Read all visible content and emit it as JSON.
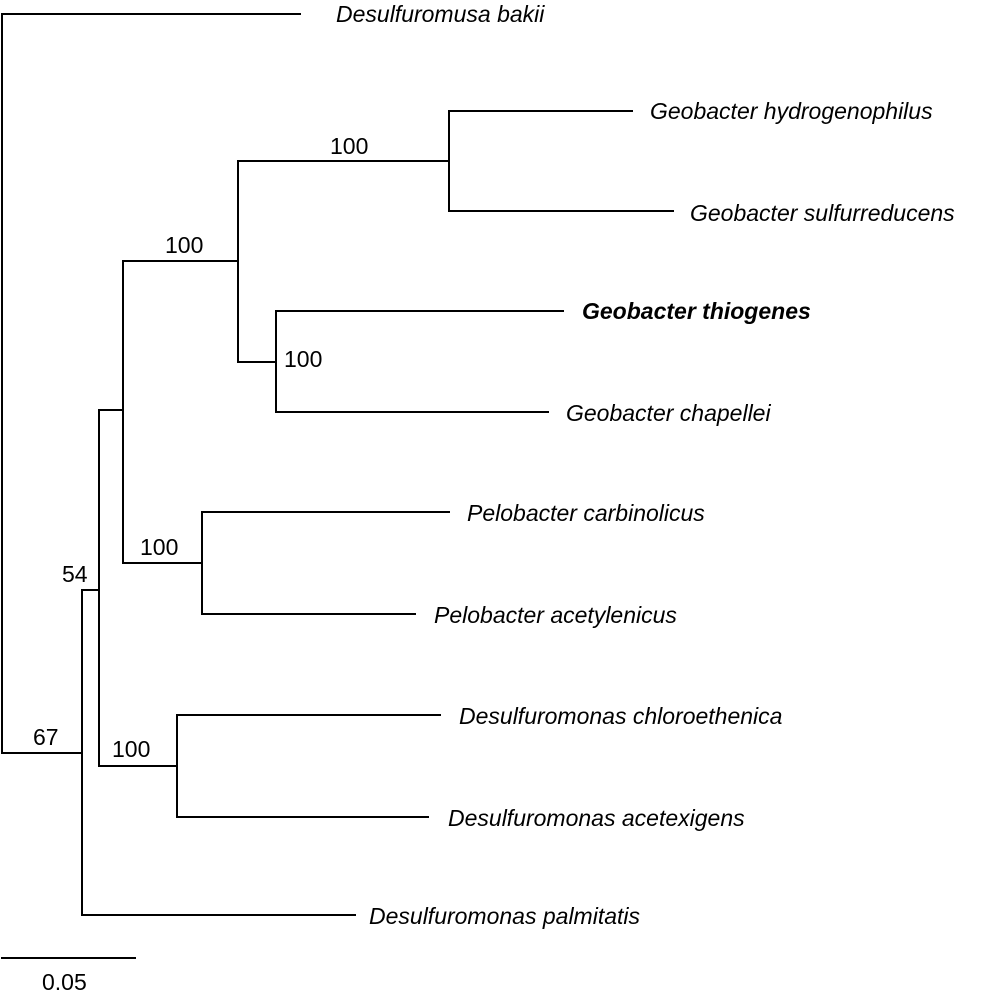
{
  "taxa": {
    "desulfuromusa_bakii": "Desulfuromusa bakii",
    "geobacter_hydrogenophilus": "Geobacter hydrogenophilus",
    "geobacter_sulfurreducens": "Geobacter sulfurreducens",
    "geobacter_thiogenes": "Geobacter thiogenes",
    "geobacter_chapellei": "Geobacter chapellei",
    "pelobacter_carbinolicus": "Pelobacter carbinolicus",
    "pelobacter_acetylenicus": "Pelobacter acetylenicus",
    "desulfuromonas_chloroethenica": "Desulfuromonas chloroethenica",
    "desulfuromonas_acetexigens": "Desulfuromonas acetexigens",
    "desulfuromonas_palmitatis": "Desulfuromonas palmitatis"
  },
  "support": {
    "geobacter_hydro_sulf": "100",
    "geobacter_clade": "100",
    "thiogenes_chapellei": "100",
    "pelobacter_clade": "100",
    "desulfuromonas_chloro_acet": "100",
    "node_54": "54",
    "node_67": "67"
  },
  "scale_bar": {
    "label": "0.05"
  }
}
